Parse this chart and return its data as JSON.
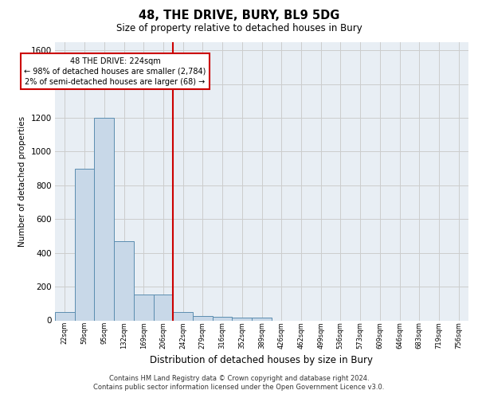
{
  "title": "48, THE DRIVE, BURY, BL9 5DG",
  "subtitle": "Size of property relative to detached houses in Bury",
  "xlabel": "Distribution of detached houses by size in Bury",
  "ylabel": "Number of detached properties",
  "footer1": "Contains HM Land Registry data © Crown copyright and database right 2024.",
  "footer2": "Contains public sector information licensed under the Open Government Licence v3.0.",
  "bin_labels": [
    "22sqm",
    "59sqm",
    "95sqm",
    "132sqm",
    "169sqm",
    "206sqm",
    "242sqm",
    "279sqm",
    "316sqm",
    "352sqm",
    "389sqm",
    "426sqm",
    "462sqm",
    "499sqm",
    "536sqm",
    "573sqm",
    "609sqm",
    "646sqm",
    "683sqm",
    "719sqm",
    "756sqm"
  ],
  "bar_values": [
    50,
    900,
    1200,
    470,
    155,
    155,
    50,
    25,
    20,
    15,
    15,
    0,
    0,
    0,
    0,
    0,
    0,
    0,
    0,
    0,
    0
  ],
  "bar_color": "#c8d8e8",
  "bar_edge_color": "#5b8db0",
  "property_line_x": 5.5,
  "property_line_color": "#cc0000",
  "annotation_line1": "48 THE DRIVE: 224sqm",
  "annotation_line2": "← 98% of detached houses are smaller (2,784)",
  "annotation_line3": "2% of semi-detached houses are larger (68) →",
  "annotation_box_edge_color": "#cc0000",
  "ylim_max": 1650,
  "ytick_interval": 200,
  "grid_color": "#cccccc",
  "bg_color": "#e8eef4"
}
